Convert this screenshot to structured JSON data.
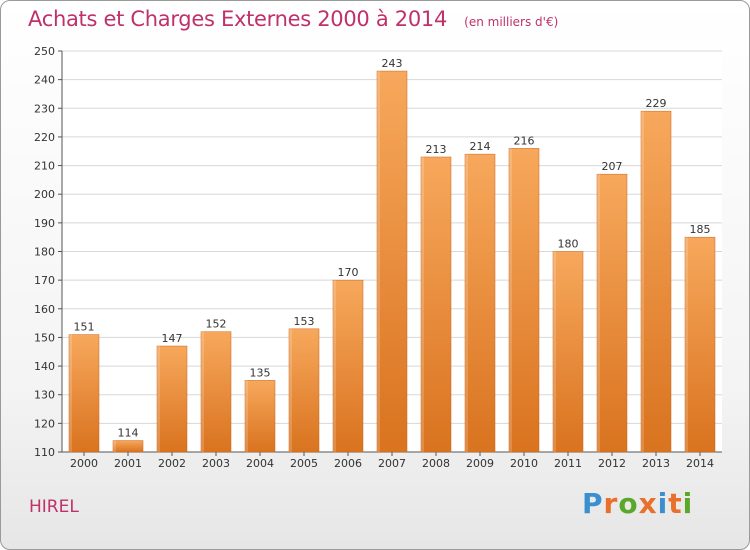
{
  "header": {
    "title": "Achats et Charges Externes 2000 à 2014",
    "subtitle": "(en milliers d'€)"
  },
  "footer": {
    "commune": "HIREL",
    "logo_text": "Proxiti",
    "logo_colors": [
      "#3a8fd0",
      "#e8702a",
      "#5aa82a",
      "#e8702a",
      "#3a8fd0",
      "#e8702a",
      "#5aa82a"
    ]
  },
  "colors": {
    "title": "#c0306a",
    "bar_light": "#f7a85c",
    "bar_dark": "#d9731f",
    "grid": "#d8d8d8"
  },
  "chart_data": {
    "type": "bar",
    "title": "Achats et Charges Externes 2000 à 2014",
    "subtitle": "(en milliers d'€)",
    "categories": [
      "2000",
      "2001",
      "2002",
      "2003",
      "2004",
      "2005",
      "2006",
      "2007",
      "2008",
      "2009",
      "2010",
      "2011",
      "2012",
      "2013",
      "2014"
    ],
    "values": [
      151,
      114,
      147,
      152,
      135,
      153,
      170,
      243,
      213,
      214,
      216,
      180,
      207,
      229,
      185
    ],
    "ylim": [
      110,
      250
    ],
    "yticks": [
      110,
      120,
      130,
      140,
      150,
      160,
      170,
      180,
      190,
      200,
      210,
      220,
      230,
      240,
      250
    ],
    "grid": true,
    "data_labels": true
  }
}
